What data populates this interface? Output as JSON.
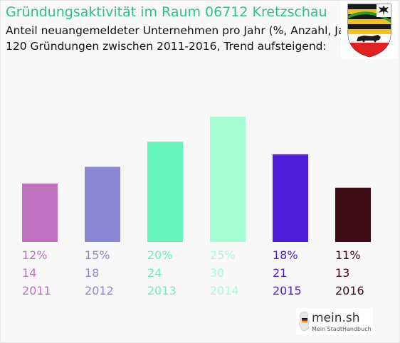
{
  "header": {
    "title": "Gründungsaktivität im Raum 06712 Kretzschau",
    "subtitle_line1": "Anteil neuangemeldeter Unternehmen pro Jahr (%, Anzahl, Jahr)",
    "subtitle_line2": "120 Gründungen zwischen 2011-2016, Trend aufsteigend:"
  },
  "crest": {
    "icon": "coat-of-arms-icon"
  },
  "brand": {
    "name": "mein.sh",
    "tagline": "Mein StadtHandbuch",
    "icon": "germany-map-icon"
  },
  "chart_data": {
    "type": "bar",
    "categories": [
      "2011",
      "2012",
      "2013",
      "2014",
      "2015",
      "2016"
    ],
    "values": [
      14,
      18,
      24,
      30,
      21,
      13
    ],
    "percent_labels": [
      "12%",
      "15%",
      "20%",
      "25%",
      "18%",
      "11%"
    ],
    "colors": [
      "#bf72c0",
      "#8b87d3",
      "#66f4bd",
      "#a6fcd5",
      "#4f1ed8",
      "#3d0c16"
    ],
    "grid": false,
    "ylim": [
      0,
      30
    ]
  }
}
